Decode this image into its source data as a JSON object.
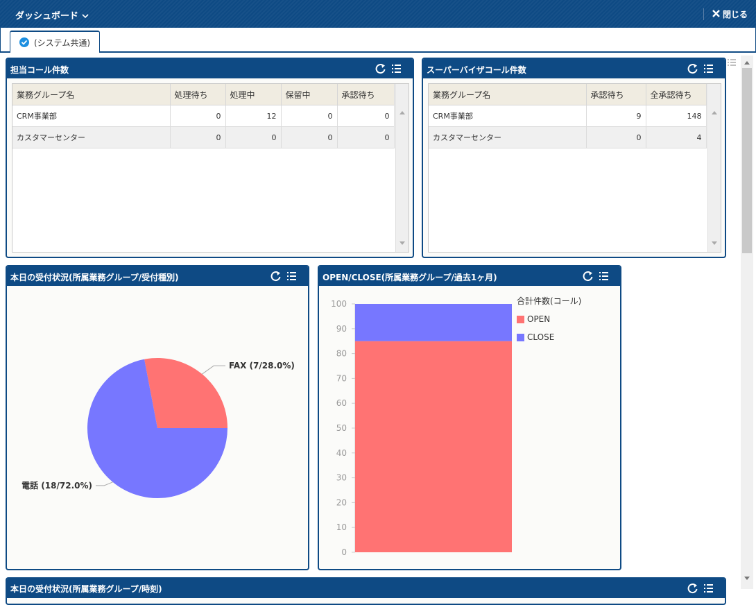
{
  "header": {
    "title": "ダッシュボード",
    "close": "閉じる"
  },
  "tab": {
    "label": "(システム共通)"
  },
  "tables": [
    {
      "title": "担当コール件数",
      "columns": [
        "業務グループ名",
        "処理待ち",
        "処理中",
        "保留中",
        "承認待ち"
      ],
      "rows": [
        [
          "CRM事業部",
          0,
          12,
          0,
          0
        ],
        [
          "カスタマーセンター",
          0,
          0,
          0,
          0
        ]
      ]
    },
    {
      "title": "スーパーバイザコール件数",
      "columns": [
        "業務グループ名",
        "承認待ち",
        "全承認待ち"
      ],
      "rows": [
        [
          "CRM事業部",
          9,
          148
        ],
        [
          "カスタマーセンター",
          0,
          4
        ]
      ]
    }
  ],
  "chart_data": [
    {
      "type": "pie",
      "title": "本日の受付状況(所属業務グループ/受付種別)",
      "values": [
        7,
        18
      ],
      "value_labels": [
        "FAX (7/28.0%)",
        "電話 (18/72.0%)"
      ],
      "colors": [
        "#ff7373",
        "#7777ff"
      ]
    },
    {
      "type": "bar",
      "stacked": true,
      "title": "OPEN/CLOSE(所属業務グループ/過去1ヶ月)",
      "legend_title": "合計件数(コール)",
      "categories": [
        null
      ],
      "series": [
        {
          "name": "OPEN",
          "color": "#ff7373",
          "values": [
            85
          ]
        },
        {
          "name": "CLOSE",
          "color": "#7777ff",
          "values": [
            15
          ]
        }
      ],
      "ylim": [
        0,
        100
      ],
      "yticks": [
        0,
        10,
        20,
        30,
        40,
        50,
        60,
        70,
        80,
        90,
        100
      ]
    }
  ],
  "bottom_panel": {
    "title": "本日の受付状況(所属業務グループ/時刻)"
  }
}
